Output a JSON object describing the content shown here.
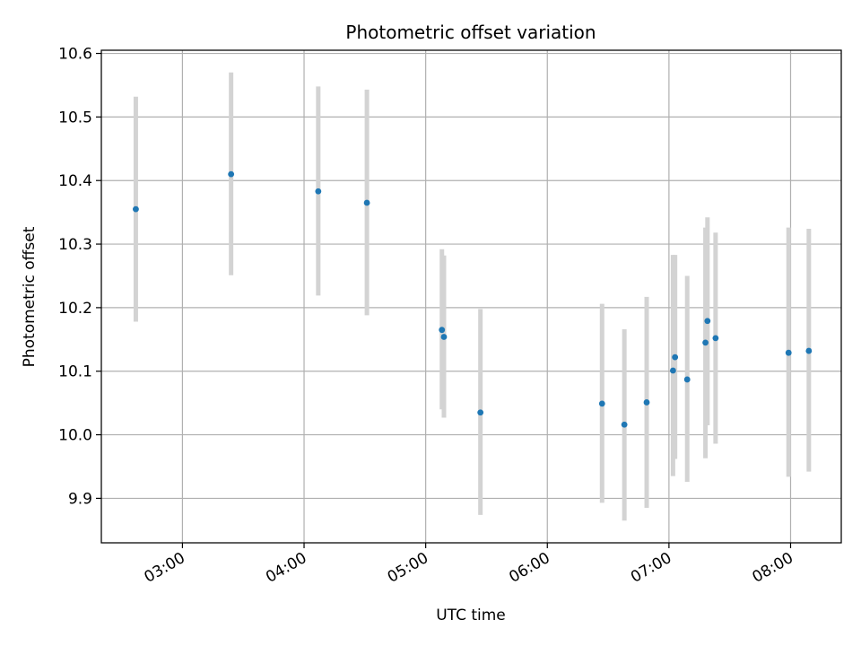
{
  "chart_data": {
    "type": "scatter",
    "title": "Photometric offset variation",
    "xlabel": "UTC time",
    "ylabel": "Photometric offset",
    "x_axis": {
      "type": "time",
      "range": [
        "02:20",
        "08:25"
      ],
      "ticks": [
        "03:00",
        "04:00",
        "05:00",
        "06:00",
        "07:00",
        "08:00"
      ]
    },
    "y_axis": {
      "range": [
        9.83,
        10.605
      ],
      "ticks": [
        "9.9",
        "10.0",
        "10.1",
        "10.2",
        "10.3",
        "10.4",
        "10.5",
        "10.6"
      ]
    },
    "grid": true,
    "colors": {
      "point": "#1f77b4",
      "errorbar": "#d3d3d3",
      "grid": "#b0b0b0"
    },
    "points": [
      {
        "x": "02:37",
        "y": 10.355,
        "low": 10.178,
        "high": 10.532
      },
      {
        "x": "03:24",
        "y": 10.41,
        "low": 10.251,
        "high": 10.57
      },
      {
        "x": "04:07",
        "y": 10.383,
        "low": 10.219,
        "high": 10.548
      },
      {
        "x": "04:31",
        "y": 10.365,
        "low": 10.188,
        "high": 10.543
      },
      {
        "x": "05:08",
        "y": 10.165,
        "low": 10.04,
        "high": 10.292
      },
      {
        "x": "05:09",
        "y": 10.154,
        "low": 10.027,
        "high": 10.282
      },
      {
        "x": "05:27",
        "y": 10.035,
        "low": 9.874,
        "high": 10.198
      },
      {
        "x": "06:27",
        "y": 10.049,
        "low": 9.893,
        "high": 10.206
      },
      {
        "x": "06:38",
        "y": 10.016,
        "low": 9.865,
        "high": 10.166
      },
      {
        "x": "06:49",
        "y": 10.051,
        "low": 9.885,
        "high": 10.217
      },
      {
        "x": "07:02",
        "y": 10.101,
        "low": 9.935,
        "high": 10.283
      },
      {
        "x": "07:03",
        "y": 10.122,
        "low": 9.962,
        "high": 10.283
      },
      {
        "x": "07:09",
        "y": 10.087,
        "low": 9.926,
        "high": 10.25
      },
      {
        "x": "07:18",
        "y": 10.145,
        "low": 9.963,
        "high": 10.326
      },
      {
        "x": "07:19",
        "y": 10.179,
        "low": 10.015,
        "high": 10.342
      },
      {
        "x": "07:23",
        "y": 10.152,
        "low": 9.986,
        "high": 10.318
      },
      {
        "x": "07:59",
        "y": 10.129,
        "low": 9.934,
        "high": 10.326
      },
      {
        "x": "08:09",
        "y": 10.132,
        "low": 9.942,
        "high": 10.324
      }
    ]
  }
}
